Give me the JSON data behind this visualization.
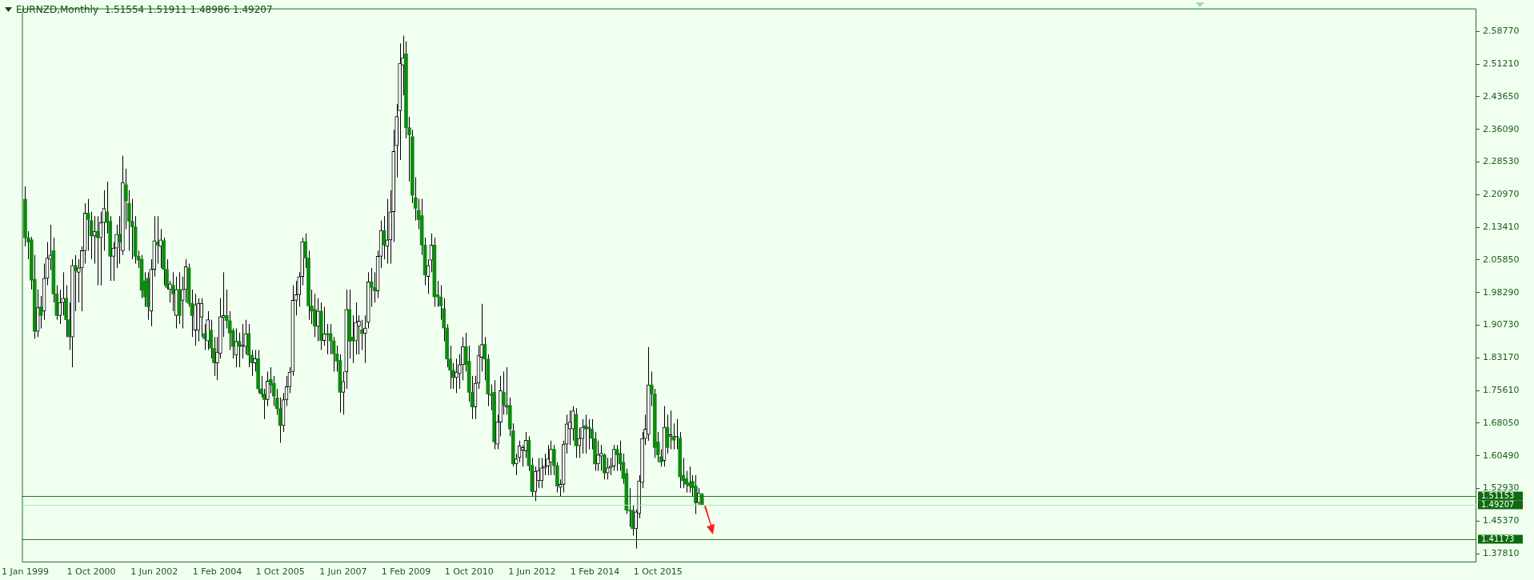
{
  "chart_data": {
    "type": "candlestick",
    "title": "EURNZD,Monthly  1.51554 1.51911 1.48986 1.49207",
    "x": [
      "1999-01",
      "1999-02",
      "1999-03",
      "1999-04",
      "1999-05",
      "1999-06",
      "1999-07",
      "1999-08",
      "1999-09",
      "1999-10",
      "1999-11",
      "1999-12",
      "2000-01",
      "2000-02",
      "2000-03",
      "2000-04",
      "2000-05",
      "2000-06",
      "2000-07",
      "2000-08",
      "2000-09",
      "2000-10",
      "2000-11",
      "2000-12",
      "2001-01",
      "2001-02",
      "2001-03",
      "2001-04",
      "2001-05",
      "2001-06",
      "2001-07",
      "2001-08",
      "2001-09",
      "2001-10",
      "2001-11",
      "2001-12",
      "2002-01",
      "2002-02",
      "2002-03",
      "2002-04",
      "2002-05",
      "2002-06",
      "2002-07",
      "2002-08",
      "2002-09",
      "2002-10",
      "2002-11",
      "2002-12",
      "2003-01",
      "2003-02",
      "2003-03",
      "2003-04",
      "2003-05",
      "2003-06",
      "2003-07",
      "2003-08",
      "2003-09",
      "2003-10",
      "2003-11",
      "2003-12",
      "2004-01",
      "2004-02",
      "2004-03",
      "2004-04",
      "2004-05",
      "2004-06",
      "2004-07",
      "2004-08",
      "2004-09",
      "2004-10",
      "2004-11",
      "2004-12",
      "2005-01",
      "2005-02",
      "2005-03",
      "2005-04",
      "2005-05",
      "2005-06",
      "2005-07",
      "2005-08",
      "2005-09",
      "2005-10",
      "2005-11",
      "2005-12",
      "2006-01",
      "2006-02",
      "2006-03",
      "2006-04",
      "2006-05",
      "2006-06",
      "2006-07",
      "2006-08",
      "2006-09",
      "2006-10",
      "2006-11",
      "2006-12",
      "2007-01",
      "2007-02",
      "2007-03",
      "2007-04",
      "2007-05",
      "2007-06",
      "2007-07",
      "2007-08",
      "2007-09",
      "2007-10",
      "2007-11",
      "2007-12",
      "2008-01",
      "2008-02",
      "2008-03",
      "2008-04",
      "2008-05",
      "2008-06",
      "2008-07",
      "2008-08",
      "2008-09",
      "2008-10",
      "2008-11",
      "2008-12",
      "2009-01",
      "2009-02",
      "2009-03",
      "2009-04",
      "2009-05",
      "2009-06",
      "2009-07",
      "2009-08",
      "2009-09",
      "2009-10",
      "2009-11",
      "2009-12",
      "2010-01",
      "2010-02",
      "2010-03",
      "2010-04",
      "2010-05",
      "2010-06",
      "2010-07",
      "2010-08",
      "2010-09",
      "2010-10",
      "2010-11",
      "2010-12",
      "2011-01",
      "2011-02",
      "2011-03",
      "2011-04",
      "2011-05",
      "2011-06",
      "2011-07",
      "2011-08",
      "2011-09",
      "2011-10",
      "2011-11",
      "2011-12",
      "2012-01",
      "2012-02",
      "2012-03",
      "2012-04",
      "2012-05",
      "2012-06",
      "2012-07",
      "2012-08",
      "2012-09",
      "2012-10",
      "2012-11",
      "2012-12",
      "2013-01",
      "2013-02",
      "2013-03",
      "2013-04",
      "2013-05",
      "2013-06",
      "2013-07",
      "2013-08",
      "2013-09",
      "2013-10",
      "2013-11",
      "2013-12",
      "2014-01",
      "2014-02",
      "2014-03",
      "2014-04",
      "2014-05",
      "2014-06",
      "2014-07",
      "2014-08",
      "2014-09",
      "2014-10",
      "2014-11",
      "2014-12",
      "2015-01",
      "2015-02",
      "2015-03",
      "2015-04",
      "2015-05",
      "2015-06",
      "2015-07",
      "2015-08",
      "2015-09",
      "2015-10",
      "2015-11",
      "2015-12",
      "2016-01",
      "2016-02",
      "2016-03",
      "2016-04",
      "2016-05",
      "2016-06",
      "2016-07",
      "2016-08",
      "2016-09",
      "2016-10",
      "2016-11",
      "2016-12"
    ],
    "ohlc": [
      [
        2.199,
        2.229,
        2.09,
        2.11
      ],
      [
        2.11,
        2.125,
        2.06,
        2.1
      ],
      [
        2.105,
        2.112,
        1.99,
        2.012
      ],
      [
        2.014,
        2.07,
        1.876,
        1.893
      ],
      [
        1.893,
        1.99,
        1.88,
        1.948
      ],
      [
        1.95,
        1.975,
        1.9,
        1.93
      ],
      [
        1.94,
        2.05,
        1.92,
        2.016
      ],
      [
        2.016,
        2.1,
        2.0,
        2.063
      ],
      [
        2.06,
        2.14,
        2.035,
        2.07
      ],
      [
        2.08,
        2.11,
        1.96,
        1.98
      ],
      [
        1.98,
        2.0,
        1.92,
        1.93
      ],
      [
        1.93,
        1.99,
        1.91,
        1.96
      ],
      [
        1.96,
        2.03,
        1.93,
        1.97
      ],
      [
        1.97,
        2.0,
        1.88,
        1.92
      ],
      [
        1.92,
        1.96,
        1.85,
        1.88
      ],
      [
        1.88,
        2.06,
        1.81,
        2.046
      ],
      [
        2.046,
        2.07,
        1.94,
        2.033
      ],
      [
        2.03,
        2.06,
        1.96,
        2.04
      ],
      [
        2.04,
        2.09,
        1.94,
        2.08
      ],
      [
        2.08,
        2.19,
        2.05,
        2.167
      ],
      [
        2.167,
        2.2,
        2.08,
        2.152
      ],
      [
        2.15,
        2.17,
        2.06,
        2.114
      ],
      [
        2.114,
        2.16,
        2.05,
        2.125
      ],
      [
        2.125,
        2.16,
        2.0,
        2.11
      ],
      [
        2.11,
        2.17,
        2.0,
        2.145
      ],
      [
        2.145,
        2.22,
        2.08,
        2.178
      ],
      [
        2.17,
        2.24,
        2.12,
        2.145
      ],
      [
        2.148,
        2.16,
        2.01,
        2.067
      ],
      [
        2.067,
        2.1,
        2.01,
        2.086
      ],
      [
        2.086,
        2.14,
        2.04,
        2.118
      ],
      [
        2.118,
        2.16,
        2.05,
        2.1
      ],
      [
        2.08,
        2.3,
        2.07,
        2.238
      ],
      [
        2.233,
        2.27,
        2.13,
        2.195
      ],
      [
        2.19,
        2.22,
        2.08,
        2.148
      ],
      [
        2.148,
        2.2,
        2.06,
        2.135
      ],
      [
        2.135,
        2.16,
        2.05,
        2.067
      ],
      [
        2.067,
        2.08,
        2.04,
        2.058
      ],
      [
        2.06,
        2.07,
        1.97,
        1.988
      ],
      [
        2.01,
        2.03,
        1.95,
        1.973
      ],
      [
        2.016,
        2.03,
        1.92,
        1.95
      ],
      [
        1.94,
        2.06,
        1.905,
        2.037
      ],
      [
        2.037,
        2.16,
        2.02,
        2.103
      ],
      [
        2.1,
        2.16,
        2.05,
        2.093
      ],
      [
        2.09,
        2.13,
        2.04,
        2.105
      ],
      [
        2.103,
        2.11,
        2.0,
        2.037
      ],
      [
        2.037,
        2.06,
        1.99,
        1.995
      ],
      [
        1.99,
        2.01,
        1.96,
        2.003
      ],
      [
        2.0,
        2.03,
        1.94,
        1.98
      ],
      [
        1.93,
        2.02,
        1.9,
        1.99
      ],
      [
        1.99,
        2.03,
        1.91,
        1.93
      ],
      [
        1.965,
        2.02,
        1.9,
        1.99
      ],
      [
        1.99,
        2.06,
        1.96,
        2.043
      ],
      [
        2.04,
        2.05,
        1.95,
        1.958
      ],
      [
        1.958,
        1.99,
        1.88,
        1.93
      ],
      [
        1.896,
        1.98,
        1.86,
        1.955
      ],
      [
        1.895,
        1.97,
        1.87,
        1.958
      ],
      [
        1.926,
        1.97,
        1.88,
        1.958
      ],
      [
        1.888,
        1.91,
        1.85,
        1.876
      ],
      [
        1.871,
        1.94,
        1.85,
        1.92
      ],
      [
        1.896,
        1.92,
        1.83,
        1.854
      ],
      [
        1.854,
        1.88,
        1.79,
        1.82
      ],
      [
        1.82,
        1.88,
        1.78,
        1.845
      ],
      [
        1.842,
        1.97,
        1.83,
        1.927
      ],
      [
        1.925,
        2.03,
        1.88,
        1.93
      ],
      [
        1.93,
        1.99,
        1.9,
        1.918
      ],
      [
        1.918,
        1.94,
        1.85,
        1.889
      ],
      [
        1.895,
        1.9,
        1.83,
        1.858
      ],
      [
        1.838,
        1.9,
        1.81,
        1.87
      ],
      [
        1.87,
        1.89,
        1.81,
        1.858
      ],
      [
        1.858,
        1.91,
        1.83,
        1.862
      ],
      [
        1.858,
        1.92,
        1.84,
        1.888
      ],
      [
        1.888,
        1.91,
        1.81,
        1.838
      ],
      [
        1.838,
        1.85,
        1.79,
        1.82
      ],
      [
        1.82,
        1.85,
        1.8,
        1.83
      ],
      [
        1.83,
        1.85,
        1.75,
        1.76
      ],
      [
        1.76,
        1.79,
        1.74,
        1.748
      ],
      [
        1.748,
        1.76,
        1.69,
        1.735
      ],
      [
        1.735,
        1.8,
        1.72,
        1.778
      ],
      [
        1.782,
        1.81,
        1.75,
        1.769
      ],
      [
        1.773,
        1.79,
        1.72,
        1.743
      ],
      [
        1.739,
        1.76,
        1.7,
        1.714
      ],
      [
        1.714,
        1.74,
        1.635,
        1.675
      ],
      [
        1.675,
        1.75,
        1.66,
        1.735
      ],
      [
        1.735,
        1.79,
        1.72,
        1.765
      ],
      [
        1.765,
        1.81,
        1.75,
        1.799
      ],
      [
        1.8,
        2.0,
        1.79,
        1.965
      ],
      [
        1.965,
        2.01,
        1.93,
        1.978
      ],
      [
        1.978,
        2.03,
        1.95,
        2.02
      ],
      [
        2.02,
        2.11,
        2.0,
        2.101
      ],
      [
        2.101,
        2.12,
        2.04,
        2.063
      ],
      [
        2.063,
        2.08,
        1.92,
        1.952
      ],
      [
        1.952,
        1.99,
        1.91,
        1.94
      ],
      [
        1.944,
        1.98,
        1.88,
        1.905
      ],
      [
        1.905,
        1.97,
        1.87,
        1.94
      ],
      [
        1.94,
        1.96,
        1.85,
        1.872
      ],
      [
        1.872,
        1.95,
        1.86,
        1.888
      ],
      [
        1.888,
        1.91,
        1.84,
        1.885
      ],
      [
        1.888,
        1.91,
        1.84,
        1.871
      ],
      [
        1.871,
        1.88,
        1.8,
        1.841
      ],
      [
        1.841,
        1.86,
        1.8,
        1.824
      ],
      [
        1.826,
        1.84,
        1.705,
        1.752
      ],
      [
        1.752,
        1.8,
        1.7,
        1.777
      ],
      [
        1.799,
        1.99,
        1.76,
        1.944
      ],
      [
        1.944,
        1.99,
        1.83,
        1.87
      ],
      [
        1.88,
        1.93,
        1.82,
        1.871
      ],
      [
        1.871,
        1.96,
        1.84,
        1.914
      ],
      [
        1.905,
        1.93,
        1.84,
        1.917
      ],
      [
        1.897,
        1.92,
        1.85,
        1.888
      ],
      [
        1.888,
        1.93,
        1.82,
        1.901
      ],
      [
        1.914,
        2.03,
        1.9,
        2.008
      ],
      [
        2.008,
        2.04,
        1.95,
        1.995
      ],
      [
        1.995,
        2.03,
        1.96,
        1.987
      ],
      [
        1.987,
        2.08,
        1.97,
        2.067
      ],
      [
        2.067,
        2.15,
        2.04,
        2.127
      ],
      [
        2.127,
        2.16,
        2.06,
        2.093
      ],
      [
        2.09,
        2.2,
        2.05,
        2.105
      ],
      [
        2.105,
        2.22,
        2.05,
        2.17
      ],
      [
        2.17,
        2.36,
        2.1,
        2.31
      ],
      [
        2.323,
        2.42,
        2.25,
        2.391
      ],
      [
        2.404,
        2.56,
        2.29,
        2.514
      ],
      [
        2.51,
        2.578,
        2.44,
        2.527
      ],
      [
        2.536,
        2.565,
        2.34,
        2.365
      ],
      [
        2.365,
        2.39,
        2.24,
        2.348
      ],
      [
        2.344,
        2.36,
        2.19,
        2.208
      ],
      [
        2.203,
        2.25,
        2.15,
        2.178
      ],
      [
        2.174,
        2.2,
        2.13,
        2.152
      ],
      [
        2.161,
        2.2,
        2.07,
        2.093
      ],
      [
        2.093,
        2.11,
        2.0,
        2.024
      ],
      [
        2.02,
        2.06,
        1.98,
        2.046
      ],
      [
        2.058,
        2.12,
        2.03,
        2.093
      ],
      [
        2.093,
        2.11,
        1.95,
        1.973
      ],
      [
        1.978,
        2.01,
        1.95,
        1.973
      ],
      [
        1.973,
        2.0,
        1.92,
        1.952
      ],
      [
        1.946,
        1.97,
        1.87,
        1.901
      ],
      [
        1.901,
        1.91,
        1.81,
        1.829
      ],
      [
        1.829,
        1.86,
        1.76,
        1.803
      ],
      [
        1.803,
        1.82,
        1.76,
        1.786
      ],
      [
        1.786,
        1.83,
        1.75,
        1.799
      ],
      [
        1.795,
        1.84,
        1.76,
        1.816
      ],
      [
        1.816,
        1.88,
        1.78,
        1.858
      ],
      [
        1.858,
        1.89,
        1.8,
        1.816
      ],
      [
        1.824,
        1.86,
        1.73,
        1.752
      ],
      [
        1.752,
        1.79,
        1.69,
        1.718
      ],
      [
        1.718,
        1.79,
        1.69,
        1.773
      ],
      [
        1.773,
        1.86,
        1.76,
        1.837
      ],
      [
        1.833,
        1.957,
        1.8,
        1.863
      ],
      [
        1.863,
        1.88,
        1.78,
        1.829
      ],
      [
        1.829,
        1.84,
        1.72,
        1.748
      ],
      [
        1.748,
        1.77,
        1.71,
        1.745
      ],
      [
        1.752,
        1.78,
        1.62,
        1.637
      ],
      [
        1.632,
        1.7,
        1.62,
        1.683
      ],
      [
        1.683,
        1.79,
        1.65,
        1.756
      ],
      [
        1.752,
        1.8,
        1.7,
        1.722
      ],
      [
        1.718,
        1.81,
        1.7,
        1.722
      ],
      [
        1.722,
        1.74,
        1.65,
        1.667
      ],
      [
        1.663,
        1.68,
        1.58,
        1.586
      ],
      [
        1.586,
        1.61,
        1.56,
        1.598
      ],
      [
        1.601,
        1.64,
        1.59,
        1.628
      ],
      [
        1.618,
        1.63,
        1.58,
        1.624
      ],
      [
        1.616,
        1.66,
        1.6,
        1.641
      ],
      [
        1.641,
        1.65,
        1.57,
        1.582
      ],
      [
        1.583,
        1.6,
        1.51,
        1.522
      ],
      [
        1.522,
        1.58,
        1.5,
        1.569
      ],
      [
        1.547,
        1.6,
        1.53,
        1.571
      ],
      [
        1.547,
        1.6,
        1.53,
        1.577
      ],
      [
        1.577,
        1.61,
        1.56,
        1.581
      ],
      [
        1.581,
        1.63,
        1.56,
        1.598
      ],
      [
        1.59,
        1.64,
        1.56,
        1.62
      ],
      [
        1.62,
        1.63,
        1.56,
        1.582
      ],
      [
        1.582,
        1.59,
        1.52,
        1.535
      ],
      [
        1.532,
        1.55,
        1.51,
        1.539
      ],
      [
        1.539,
        1.64,
        1.52,
        1.632
      ],
      [
        1.632,
        1.7,
        1.61,
        1.679
      ],
      [
        1.667,
        1.71,
        1.63,
        1.683
      ],
      [
        1.667,
        1.72,
        1.64,
        1.709
      ],
      [
        1.701,
        1.715,
        1.6,
        1.628
      ],
      [
        1.628,
        1.67,
        1.6,
        1.645
      ],
      [
        1.645,
        1.69,
        1.61,
        1.671
      ],
      [
        1.675,
        1.7,
        1.61,
        1.667
      ],
      [
        1.667,
        1.69,
        1.62,
        1.671
      ],
      [
        1.667,
        1.69,
        1.62,
        1.645
      ],
      [
        1.645,
        1.66,
        1.57,
        1.586
      ],
      [
        1.586,
        1.64,
        1.57,
        1.607
      ],
      [
        1.604,
        1.63,
        1.57,
        1.611
      ],
      [
        1.607,
        1.61,
        1.55,
        1.565
      ],
      [
        1.565,
        1.6,
        1.55,
        1.577
      ],
      [
        1.577,
        1.6,
        1.56,
        1.581
      ],
      [
        1.581,
        1.63,
        1.57,
        1.62
      ],
      [
        1.62,
        1.63,
        1.57,
        1.607
      ],
      [
        1.611,
        1.64,
        1.57,
        1.586
      ],
      [
        1.59,
        1.61,
        1.54,
        1.552
      ],
      [
        1.564,
        1.575,
        1.47,
        1.479
      ],
      [
        1.479,
        1.53,
        1.44,
        1.477
      ],
      [
        1.479,
        1.49,
        1.42,
        1.436
      ],
      [
        1.436,
        1.48,
        1.39,
        1.475
      ],
      [
        1.471,
        1.56,
        1.46,
        1.547
      ],
      [
        1.543,
        1.66,
        1.53,
        1.645
      ],
      [
        1.645,
        1.7,
        1.63,
        1.667
      ],
      [
        1.654,
        1.857,
        1.64,
        1.769
      ],
      [
        1.769,
        1.8,
        1.72,
        1.748
      ],
      [
        1.748,
        1.76,
        1.6,
        1.624
      ],
      [
        1.637,
        1.66,
        1.59,
        1.607
      ],
      [
        1.603,
        1.62,
        1.58,
        1.59
      ],
      [
        1.594,
        1.72,
        1.58,
        1.671
      ],
      [
        1.671,
        1.7,
        1.61,
        1.624
      ],
      [
        1.65,
        1.71,
        1.62,
        1.654
      ],
      [
        1.65,
        1.68,
        1.62,
        1.641
      ],
      [
        1.648,
        1.69,
        1.62,
        1.65
      ],
      [
        1.646,
        1.66,
        1.53,
        1.556
      ],
      [
        1.56,
        1.6,
        1.53,
        1.547
      ],
      [
        1.552,
        1.57,
        1.52,
        1.539
      ],
      [
        1.543,
        1.58,
        1.52,
        1.535
      ],
      [
        1.546,
        1.56,
        1.51,
        1.531
      ],
      [
        1.535,
        1.56,
        1.47,
        1.496
      ],
      [
        1.496,
        1.53,
        1.49,
        1.518
      ],
      [
        1.51554,
        1.51911,
        1.48986,
        1.49207
      ]
    ],
    "xlim": [
      "1998-12",
      "2037-06"
    ],
    "xticks": [
      {
        "value": "1999-01",
        "label": "1 Jan 1999"
      },
      {
        "value": "2000-10",
        "label": "1 Oct 2000"
      },
      {
        "value": "2002-06",
        "label": "1 Jun 2002"
      },
      {
        "value": "2004-02",
        "label": "1 Feb 2004"
      },
      {
        "value": "2005-10",
        "label": "1 Oct 2005"
      },
      {
        "value": "2007-06",
        "label": "1 Jun 2007"
      },
      {
        "value": "2009-02",
        "label": "1 Feb 2009"
      },
      {
        "value": "2010-10",
        "label": "1 Oct 2010"
      },
      {
        "value": "2012-06",
        "label": "1 Jun 2012"
      },
      {
        "value": "2014-02",
        "label": "1 Feb 2014"
      },
      {
        "value": "2015-10",
        "label": "1 Oct 2015"
      }
    ],
    "ylim": [
      1.358,
      2.641
    ],
    "yticks": [
      {
        "value": 2.5877,
        "label": "2.58770"
      },
      {
        "value": 2.5121,
        "label": "2.51210"
      },
      {
        "value": 2.4365,
        "label": "2.43650"
      },
      {
        "value": 2.3609,
        "label": "2.36090"
      },
      {
        "value": 2.2853,
        "label": "2.28530"
      },
      {
        "value": 2.2097,
        "label": "2.20970"
      },
      {
        "value": 2.1341,
        "label": "2.13410"
      },
      {
        "value": 2.0585,
        "label": "2.05850"
      },
      {
        "value": 1.9829,
        "label": "1.98290"
      },
      {
        "value": 1.9073,
        "label": "1.90730"
      },
      {
        "value": 1.8317,
        "label": "1.83170"
      },
      {
        "value": 1.7561,
        "label": "1.75610"
      },
      {
        "value": 1.6805,
        "label": "1.68050"
      },
      {
        "value": 1.6049,
        "label": "1.60490"
      },
      {
        "value": 1.5293,
        "label": "1.52930"
      },
      {
        "value": 1.4537,
        "label": "1.45370"
      },
      {
        "value": 1.3781,
        "label": "1.37810"
      }
    ],
    "ref_lines": [
      {
        "axis": "y",
        "value": 1.51153,
        "label": "1.51153",
        "color": "#1f7a1f"
      },
      {
        "axis": "y",
        "value": 1.49207,
        "label": "1.49207",
        "color": "#a8eea8"
      },
      {
        "axis": "y",
        "value": 1.41173,
        "label": "1.41173",
        "color": "#1f7a1f"
      }
    ],
    "grid": false,
    "legend": false
  }
}
